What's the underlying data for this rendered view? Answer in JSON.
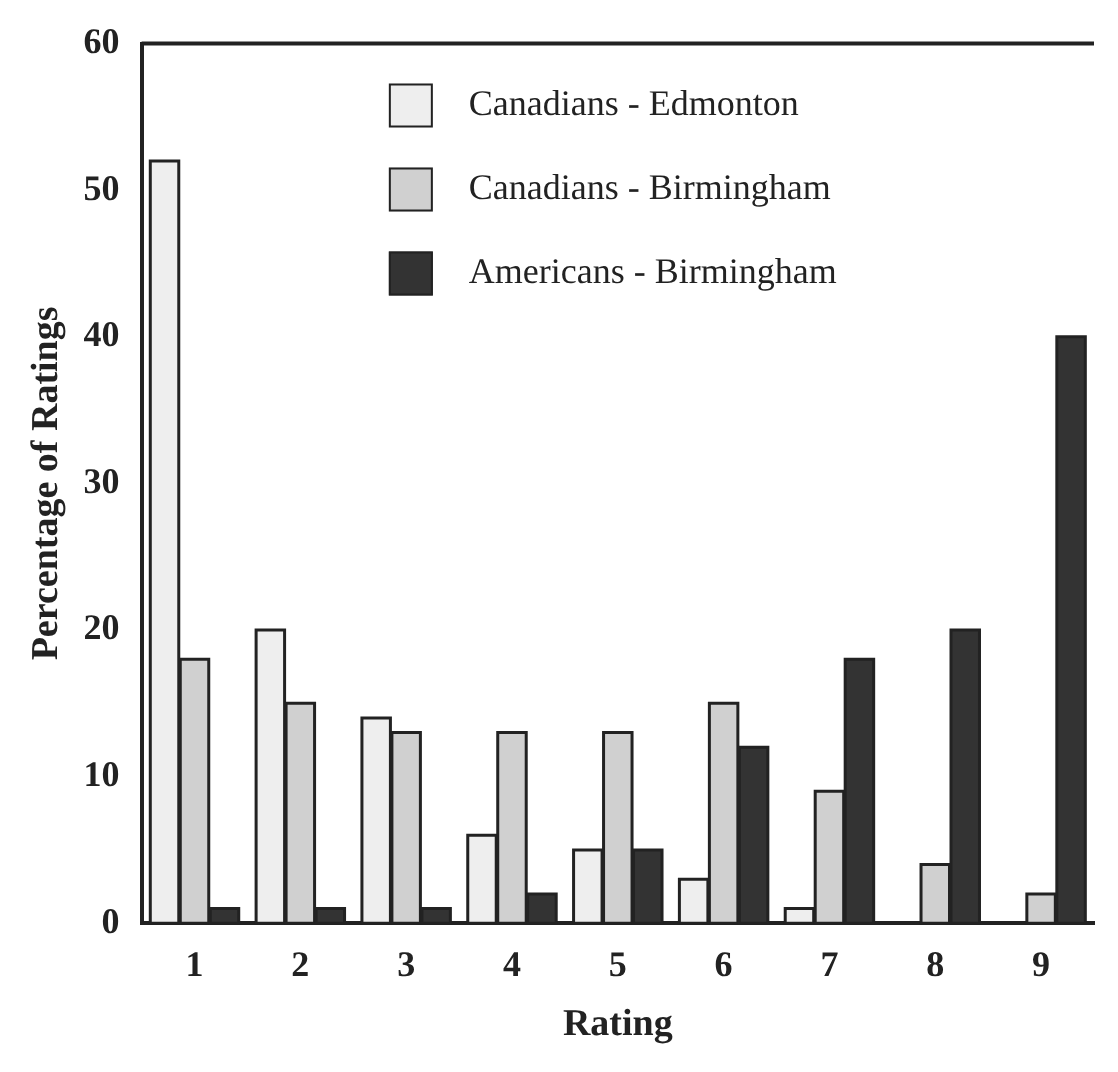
{
  "chart_data": {
    "type": "bar",
    "xlabel": "Rating",
    "ylabel": "Percentage of Ratings",
    "categories": [
      "1",
      "2",
      "3",
      "4",
      "5",
      "6",
      "7",
      "8",
      "9"
    ],
    "series": [
      {
        "name": "Canadians - Edmonton",
        "color": "#eeeeee",
        "values": [
          52,
          20,
          14,
          6,
          5,
          3,
          1,
          0,
          0
        ]
      },
      {
        "name": "Canadians - Birmingham",
        "color": "#d0d0d0",
        "values": [
          18,
          15,
          13,
          13,
          13,
          15,
          9,
          4,
          2
        ]
      },
      {
        "name": "Americans - Birmingham",
        "color": "#333333",
        "values": [
          1,
          1,
          1,
          2,
          5,
          12,
          18,
          20,
          40
        ]
      }
    ],
    "ylim": [
      0,
      60
    ],
    "yticks": [
      0,
      10,
      20,
      30,
      40,
      50,
      60
    ],
    "grid": false,
    "legend": "top"
  }
}
